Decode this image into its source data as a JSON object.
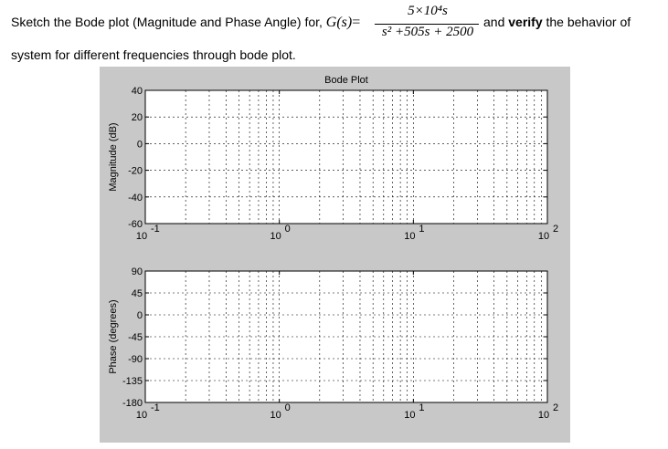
{
  "problem": {
    "intro": "Sketch the Bode plot (Magnitude and Phase Angle) for,",
    "func_label": "G(s)",
    "equals": "=",
    "numerator": "5×10⁴s",
    "denominator": "s² +505s + 2500",
    "and_text": "and",
    "verify_word": "verify",
    "after_text": "the behavior of",
    "line2": "system for different frequencies through bode plot."
  },
  "chart_data": [
    {
      "type": "line",
      "title": "Bode Plot",
      "ylabel": "Magnitude (dB)",
      "xlabel": "",
      "xscale": "log",
      "xlim": [
        0.1,
        100
      ],
      "ylim": [
        -60,
        40
      ],
      "yticks": [
        "40",
        "20",
        "0",
        "-20",
        "-40",
        "-60"
      ],
      "xticks": [
        {
          "base": "10",
          "exp": "-1"
        },
        {
          "base": "10",
          "exp": "0"
        },
        {
          "base": "10",
          "exp": "1"
        },
        {
          "base": "10",
          "exp": "2"
        }
      ],
      "grid": true,
      "series": []
    },
    {
      "type": "line",
      "ylabel": "Phase (degrees)",
      "xlabel": "",
      "xscale": "log",
      "xlim": [
        0.1,
        100
      ],
      "ylim": [
        -180,
        90
      ],
      "yticks": [
        "90",
        "45",
        "0",
        "-45",
        "-90",
        "-135",
        "-180"
      ],
      "xticks": [
        {
          "base": "10",
          "exp": "-1"
        },
        {
          "base": "10",
          "exp": "0"
        },
        {
          "base": "10",
          "exp": "1"
        },
        {
          "base": "10",
          "exp": "2"
        }
      ],
      "grid": true,
      "series": []
    }
  ]
}
